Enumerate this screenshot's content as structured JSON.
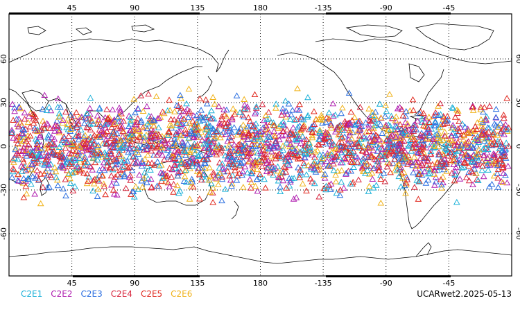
{
  "map": {
    "top_lon_ticks": [
      "45",
      "90",
      "135",
      "180",
      "-135",
      "-90",
      "-45"
    ],
    "bottom_lon_ticks": [
      "45",
      "90",
      "135",
      "180",
      "-135",
      "-90",
      "-45"
    ],
    "left_lat_ticks": [
      "60",
      "30",
      "0",
      "-30",
      "-60"
    ],
    "right_lat_ticks": [
      "60",
      "30",
      "0",
      "-30",
      "-60"
    ],
    "marker_shape": "triangle-outline"
  },
  "legend": [
    {
      "label": "C2E1",
      "color": "#1ab0d8"
    },
    {
      "label": "C2E2",
      "color": "#b01fb0"
    },
    {
      "label": "C2E3",
      "color": "#2a6ee0"
    },
    {
      "label": "C2E4",
      "color": "#d8243c"
    },
    {
      "label": "C2E5",
      "color": "#e0281e"
    },
    {
      "label": "C2E6",
      "color": "#f0b21a"
    }
  ],
  "caption": "UCARwet2.2025-05-13"
}
